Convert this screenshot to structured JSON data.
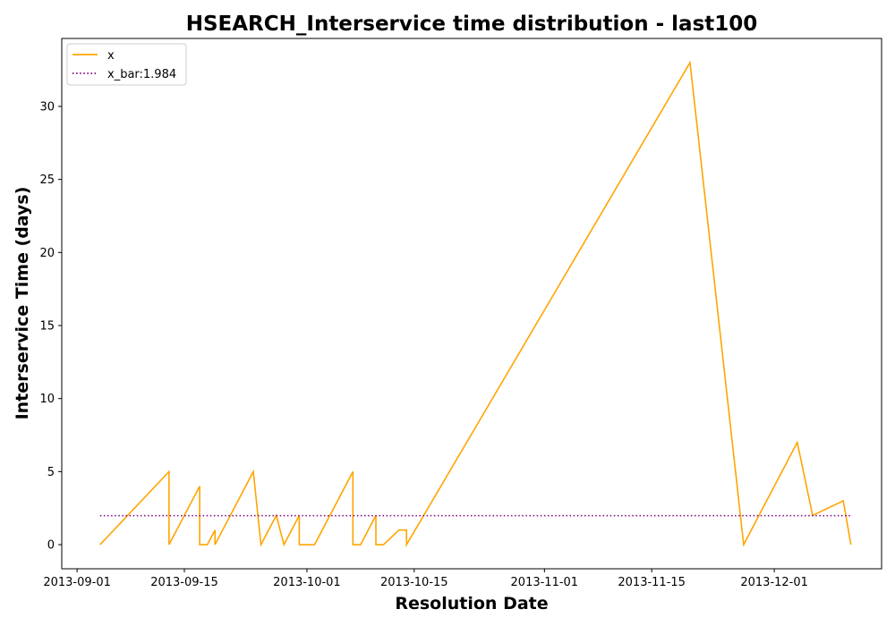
{
  "chart_data": {
    "type": "line",
    "title": "HSEARCH_Interservice time distribution - last100",
    "xlabel": "Resolution Date",
    "ylabel": "Interservice Time (days)",
    "x_ticks": [
      "2013-09-01",
      "2013-09-15",
      "2013-10-01",
      "2013-10-15",
      "2013-11-01",
      "2013-11-15",
      "2013-12-01"
    ],
    "y_ticks": [
      "0",
      "5",
      "10",
      "15",
      "20",
      "25",
      "30"
    ],
    "xlim": [
      "2013-08-30",
      "2013-12-15"
    ],
    "ylim": [
      -1.65,
      34.65
    ],
    "grid": false,
    "legend_position": "top-left",
    "series": [
      {
        "name": "x",
        "color": "#ffa500",
        "style": "solid",
        "points": [
          {
            "x": "2013-09-04",
            "y": 0
          },
          {
            "x": "2013-09-13",
            "y": 5
          },
          {
            "x": "2013-09-13",
            "y": 0
          },
          {
            "x": "2013-09-17",
            "y": 4
          },
          {
            "x": "2013-09-17",
            "y": 0
          },
          {
            "x": "2013-09-18",
            "y": 0
          },
          {
            "x": "2013-09-19",
            "y": 1
          },
          {
            "x": "2013-09-19",
            "y": 0
          },
          {
            "x": "2013-09-24",
            "y": 5
          },
          {
            "x": "2013-09-25",
            "y": 0
          },
          {
            "x": "2013-09-27",
            "y": 2
          },
          {
            "x": "2013-09-28",
            "y": 0
          },
          {
            "x": "2013-09-30",
            "y": 2
          },
          {
            "x": "2013-09-30",
            "y": 0
          },
          {
            "x": "2013-10-02",
            "y": 0
          },
          {
            "x": "2013-10-07",
            "y": 5
          },
          {
            "x": "2013-10-07",
            "y": 0
          },
          {
            "x": "2013-10-08",
            "y": 0
          },
          {
            "x": "2013-10-10",
            "y": 2
          },
          {
            "x": "2013-10-10",
            "y": 0
          },
          {
            "x": "2013-10-11",
            "y": 0
          },
          {
            "x": "2013-10-13",
            "y": 1
          },
          {
            "x": "2013-10-14",
            "y": 1
          },
          {
            "x": "2013-10-14",
            "y": 0
          },
          {
            "x": "2013-11-20",
            "y": 33
          },
          {
            "x": "2013-11-27",
            "y": 0
          },
          {
            "x": "2013-12-04",
            "y": 7
          },
          {
            "x": "2013-12-06",
            "y": 2
          },
          {
            "x": "2013-12-10",
            "y": 3
          },
          {
            "x": "2013-12-11",
            "y": 0
          }
        ]
      },
      {
        "name": "x_bar:1.984",
        "color": "#800080",
        "style": "dotted",
        "points": [
          {
            "x": "2013-09-04",
            "y": 1.984
          },
          {
            "x": "2013-12-11",
            "y": 1.984
          }
        ]
      }
    ]
  }
}
